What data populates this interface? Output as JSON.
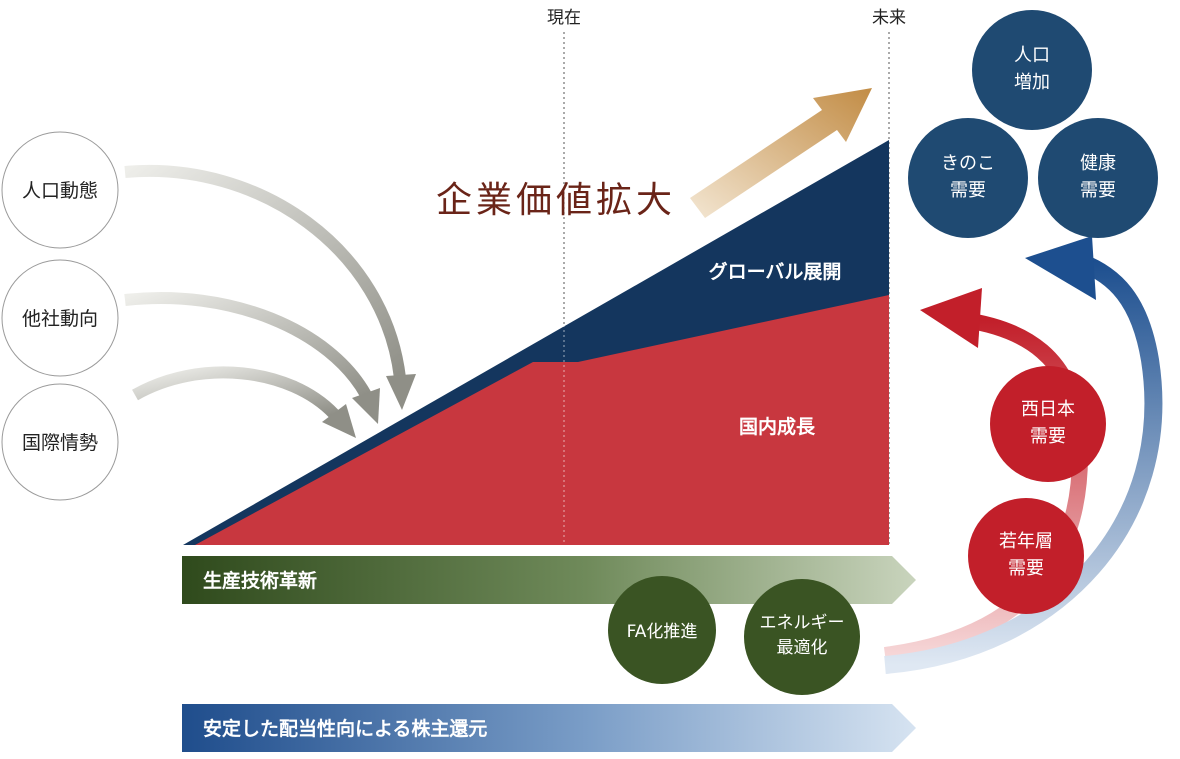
{
  "timeline": {
    "now_label": "現在",
    "future_label": "未来"
  },
  "center": {
    "headline": "企業価値拡大",
    "global_label": "グローバル展開",
    "domestic_label": "国内成長"
  },
  "external_factors": [
    {
      "label": "人口動態"
    },
    {
      "label": "他社動向"
    },
    {
      "label": "国際情勢"
    }
  ],
  "demand_top": {
    "population": [
      "人口",
      "増加"
    ],
    "mushroom": [
      "きのこ",
      "需要"
    ],
    "health": [
      "健康",
      "需要"
    ]
  },
  "demand_side": {
    "west_japan": [
      "西日本",
      "需要"
    ],
    "youth": [
      "若年層",
      "需要"
    ]
  },
  "bars": {
    "production": "生産技術革新",
    "dividend": "安定した配当性向による株主還元"
  },
  "initiatives": {
    "fa": "FA化推進",
    "energy": [
      "エネルギー",
      "最適化"
    ]
  },
  "colors": {
    "navy": "#14365e",
    "red": "#c8373f",
    "green": "#3a5423",
    "gold": "#c9964e",
    "gray_arrow": "#9a9a92"
  }
}
